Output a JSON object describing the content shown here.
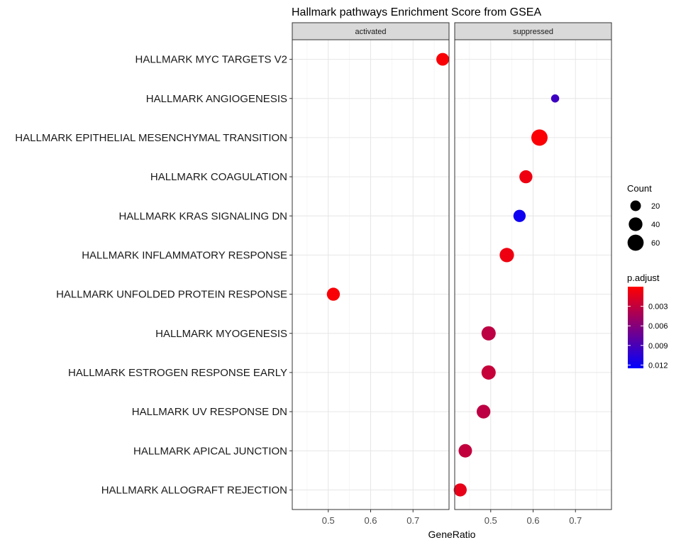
{
  "chart_data": {
    "type": "scatter",
    "title": "Hallmark pathways Enrichment Score from GSEA",
    "xlabel": "GeneRatio",
    "ylabel": "",
    "xlim": [
      0.415,
      0.785
    ],
    "xticks": [
      0.5,
      0.6,
      0.7
    ],
    "xtick_labels": [
      "0.5",
      "0.6",
      "0.7"
    ],
    "grid": true,
    "facets": [
      "activated",
      "suppressed"
    ],
    "categories": [
      "HALLMARK MYC TARGETS V2",
      "HALLMARK ANGIOGENESIS",
      "HALLMARK EPITHELIAL MESENCHYMAL TRANSITION",
      "HALLMARK COAGULATION",
      "HALLMARK KRAS SIGNALING DN",
      "HALLMARK INFLAMMATORY RESPONSE",
      "HALLMARK UNFOLDED PROTEIN RESPONSE",
      "HALLMARK MYOGENESIS",
      "HALLMARK ESTROGEN RESPONSE EARLY",
      "HALLMARK UV RESPONSE DN",
      "HALLMARK APICAL JUNCTION",
      "HALLMARK ALLOGRAFT REJECTION"
    ],
    "points": [
      {
        "category": "HALLMARK MYC TARGETS V2",
        "facet": "activated",
        "x": 0.77,
        "count": 33,
        "p_adjust": 0.0003
      },
      {
        "category": "HALLMARK ANGIOGENESIS",
        "facet": "suppressed",
        "x": 0.652,
        "count": 9,
        "p_adjust": 0.0095
      },
      {
        "category": "HALLMARK EPITHELIAL MESENCHYMAL TRANSITION",
        "facet": "suppressed",
        "x": 0.615,
        "count": 62,
        "p_adjust": 0.0002
      },
      {
        "category": "HALLMARK COAGULATION",
        "facet": "suppressed",
        "x": 0.583,
        "count": 35,
        "p_adjust": 0.0008
      },
      {
        "category": "HALLMARK KRAS SIGNALING DN",
        "facet": "suppressed",
        "x": 0.568,
        "count": 30,
        "p_adjust": 0.0118
      },
      {
        "category": "HALLMARK INFLAMMATORY RESPONSE",
        "facet": "suppressed",
        "x": 0.538,
        "count": 45,
        "p_adjust": 0.0008
      },
      {
        "category": "HALLMARK UNFOLDED PROTEIN RESPONSE",
        "facet": "activated",
        "x": 0.512,
        "count": 35,
        "p_adjust": 0.0003
      },
      {
        "category": "HALLMARK MYOGENESIS",
        "facet": "suppressed",
        "x": 0.495,
        "count": 44,
        "p_adjust": 0.0033
      },
      {
        "category": "HALLMARK ESTROGEN RESPONSE EARLY",
        "facet": "suppressed",
        "x": 0.495,
        "count": 44,
        "p_adjust": 0.0028
      },
      {
        "category": "HALLMARK UV RESPONSE DN",
        "facet": "suppressed",
        "x": 0.483,
        "count": 40,
        "p_adjust": 0.0033
      },
      {
        "category": "HALLMARK APICAL JUNCTION",
        "facet": "suppressed",
        "x": 0.44,
        "count": 38,
        "p_adjust": 0.003
      },
      {
        "category": "HALLMARK ALLOGRAFT REJECTION",
        "facet": "suppressed",
        "x": 0.428,
        "count": 35,
        "p_adjust": 0.0012
      }
    ],
    "legend_count": {
      "title": "Count",
      "values": [
        20,
        40,
        60
      ],
      "labels": [
        "20",
        "40",
        "60"
      ]
    },
    "legend_p_adjust": {
      "title": "p.adjust",
      "low_color": "#FF0000",
      "high_color": "#0000FF",
      "min": 0.0,
      "max": 0.0125,
      "ticks": [
        0.003,
        0.006,
        0.009,
        0.012
      ],
      "tick_labels": [
        "0.003",
        "0.006",
        "0.009",
        "0.012"
      ]
    },
    "legend_placement": "right"
  }
}
